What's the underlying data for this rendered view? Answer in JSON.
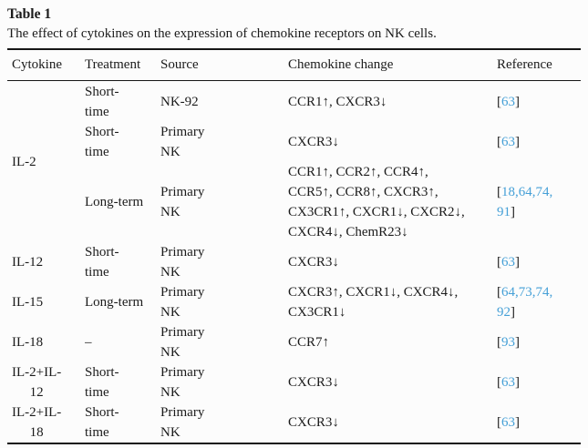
{
  "accent_link_color": "#46a0d7",
  "header": {
    "table_label": "Table 1",
    "caption": "The effect of cytokines on the expression of chemokine receptors on NK cells."
  },
  "table": {
    "columns": {
      "cytokine": "Cytokine",
      "treatment": "Treatment",
      "source": "Source",
      "change": "Chemokine change",
      "reference": "Reference"
    },
    "rows": [
      {
        "cytokine": "IL-2",
        "treatment": "Short-\ntime",
        "source": "NK-92",
        "change": "CCR1↑, CXCR3↓",
        "ref": {
          "open": "[",
          "ids": "63",
          "close": "]"
        }
      },
      {
        "treatment": "Short-\ntime",
        "source": "Primary\nNK",
        "change": "CXCR3↓",
        "ref": {
          "open": "[",
          "ids": "63",
          "close": "]"
        }
      },
      {
        "treatment": "Long-term",
        "source": "Primary\nNK",
        "change": "CCR1↑, CCR2↑, CCR4↑,\nCCR5↑, CCR8↑, CXCR3↑,\nCX3CR1↑, CXCR1↓, CXCR2↓,\nCXCR4↓, ChemR23↓",
        "ref": {
          "open": "[",
          "ids": "18,64,74,\n91",
          "close": "]"
        }
      },
      {
        "cytokine": "IL-12",
        "treatment": "Short-\ntime",
        "source": "Primary\nNK",
        "change": "CXCR3↓",
        "ref": {
          "open": "[",
          "ids": "63",
          "close": "]"
        }
      },
      {
        "cytokine": "IL-15",
        "treatment": "Long-term",
        "source": "Primary\nNK",
        "change": "CXCR3↑, CXCR1↓, CXCR4↓,\nCX3CR1↓",
        "ref": {
          "open": "[",
          "ids": "64,73,74,\n92",
          "close": "]"
        }
      },
      {
        "cytokine": "IL-18",
        "treatment": "–",
        "source": "Primary\nNK",
        "change": "CCR7↑",
        "ref": {
          "open": "[",
          "ids": "93",
          "close": "]"
        }
      },
      {
        "cytokine": "IL-2+IL-\n12",
        "treatment": "Short-\ntime",
        "source": "Primary\nNK",
        "change": "CXCR3↓",
        "ref": {
          "open": "[",
          "ids": "63",
          "close": "]"
        }
      },
      {
        "cytokine": "IL-2+IL-\n18",
        "treatment": "Short-\ntime",
        "source": "Primary\nNK",
        "change": "CXCR3↓",
        "ref": {
          "open": "[",
          "ids": "63",
          "close": "]"
        }
      }
    ]
  }
}
